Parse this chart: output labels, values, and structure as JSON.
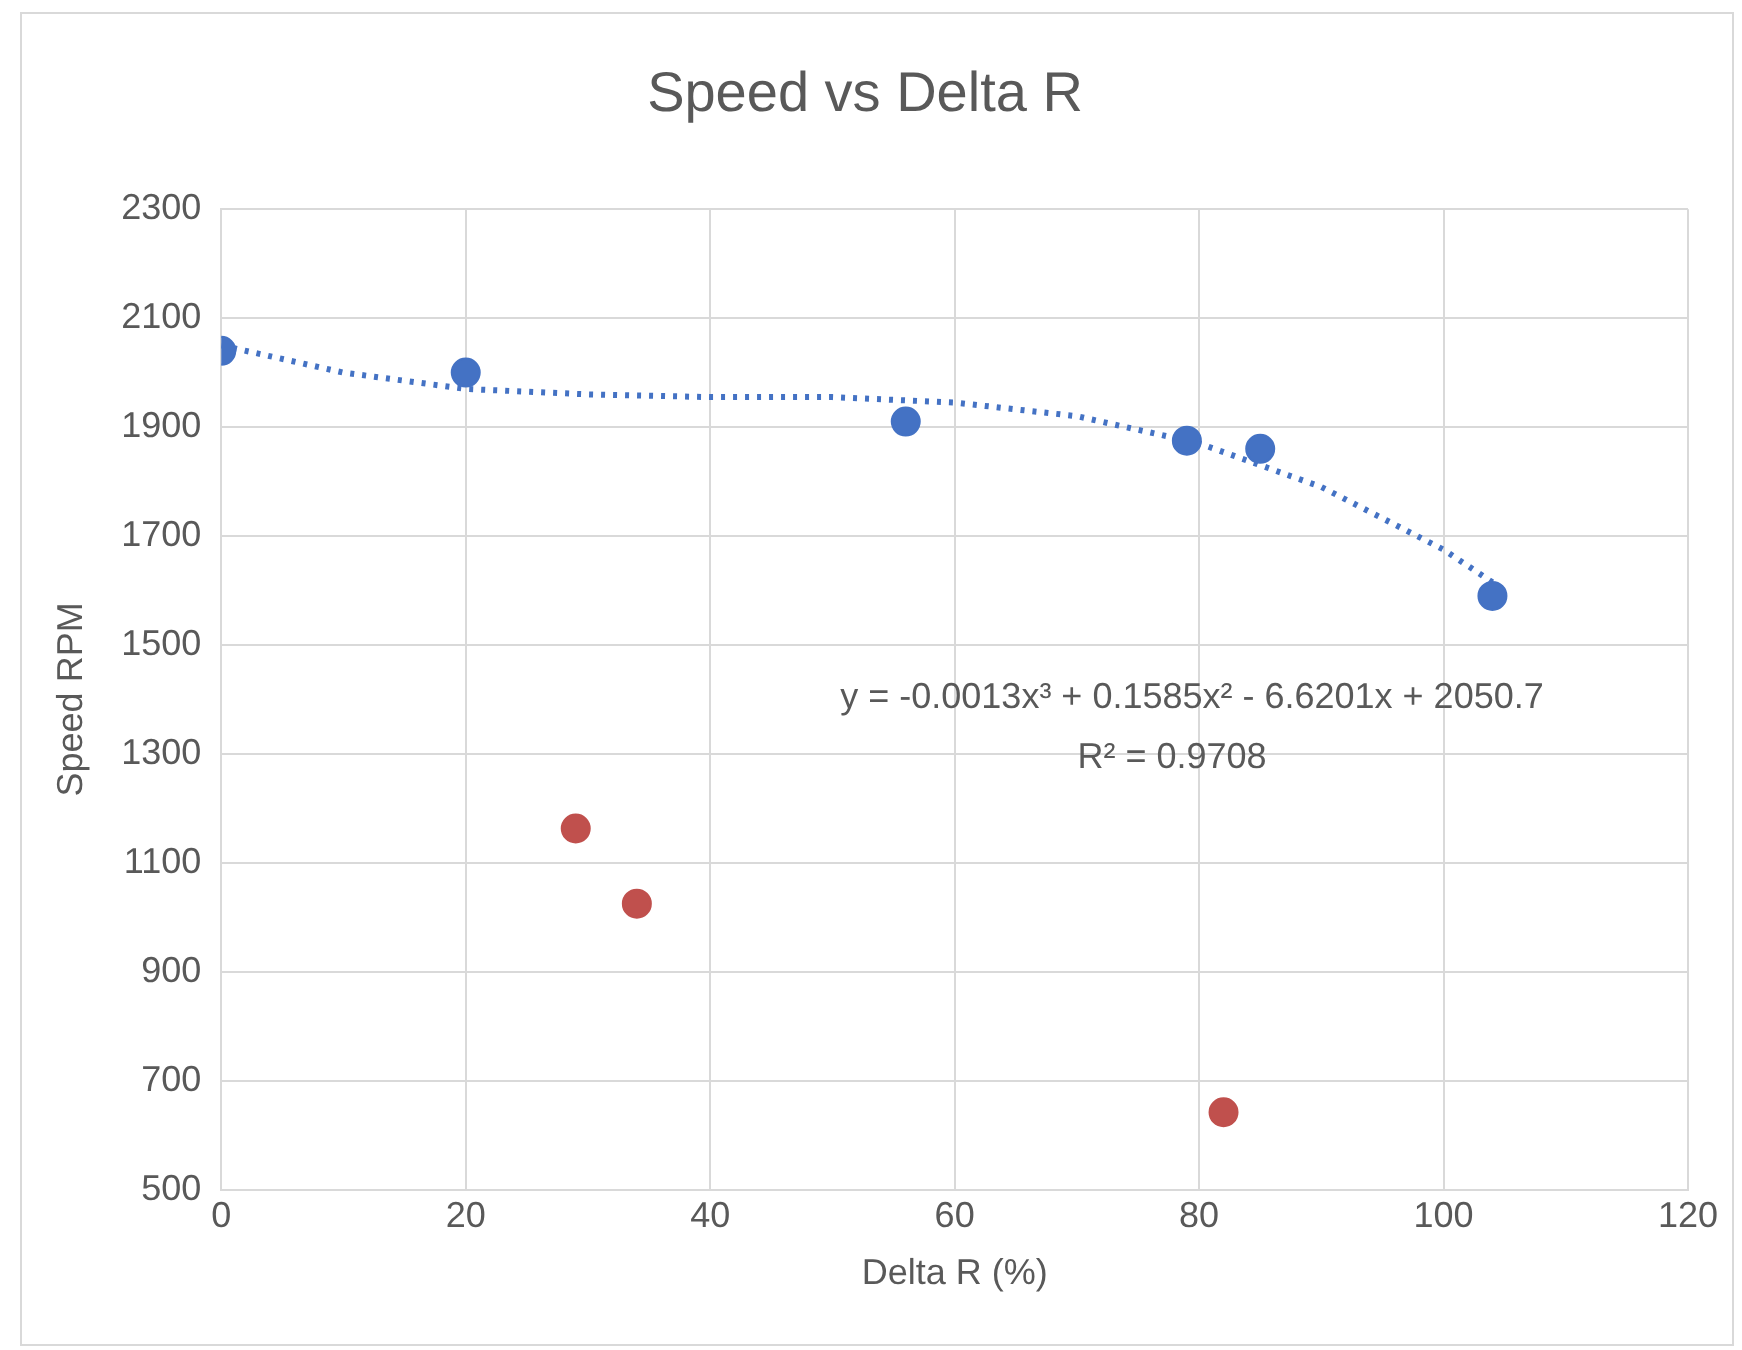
{
  "chart_data": {
    "type": "scatter",
    "title": "Speed vs Delta R",
    "xlabel": "Delta R (%)",
    "ylabel": "Speed RPM",
    "xlim": [
      0,
      120
    ],
    "xticks": [
      0,
      20,
      40,
      60,
      80,
      100,
      120
    ],
    "ylim": [
      500,
      2300
    ],
    "yticks": [
      500,
      700,
      900,
      1100,
      1300,
      1500,
      1700,
      1900,
      2100,
      2300
    ],
    "grid": true,
    "marker": "circle",
    "series": [
      {
        "color": "#4472c4",
        "x": [
          0,
          20,
          56,
          79,
          85,
          104
        ],
        "values": [
          2040,
          2000,
          1910,
          1875,
          1860,
          1590
        ]
      },
      {
        "color": "#c0504d",
        "x": [
          29,
          34,
          82
        ],
        "values": [
          1163,
          1025,
          642
        ]
      },
      {
        "type": "line",
        "marker": "none",
        "line_style": "dotted",
        "color": "#4472c4",
        "x": [
          0,
          10,
          20,
          30,
          40,
          50,
          60,
          70,
          80,
          90,
          100,
          104
        ],
        "values": [
          2050,
          2000,
          1970,
          1960,
          1955,
          1955,
          1945,
          1920,
          1870,
          1790,
          1675,
          1615
        ]
      }
    ],
    "annotations": [
      "y = -0.0013x³ + 0.1585x² - 6.6201x + 2050.7",
      "R² = 0.9708"
    ]
  }
}
